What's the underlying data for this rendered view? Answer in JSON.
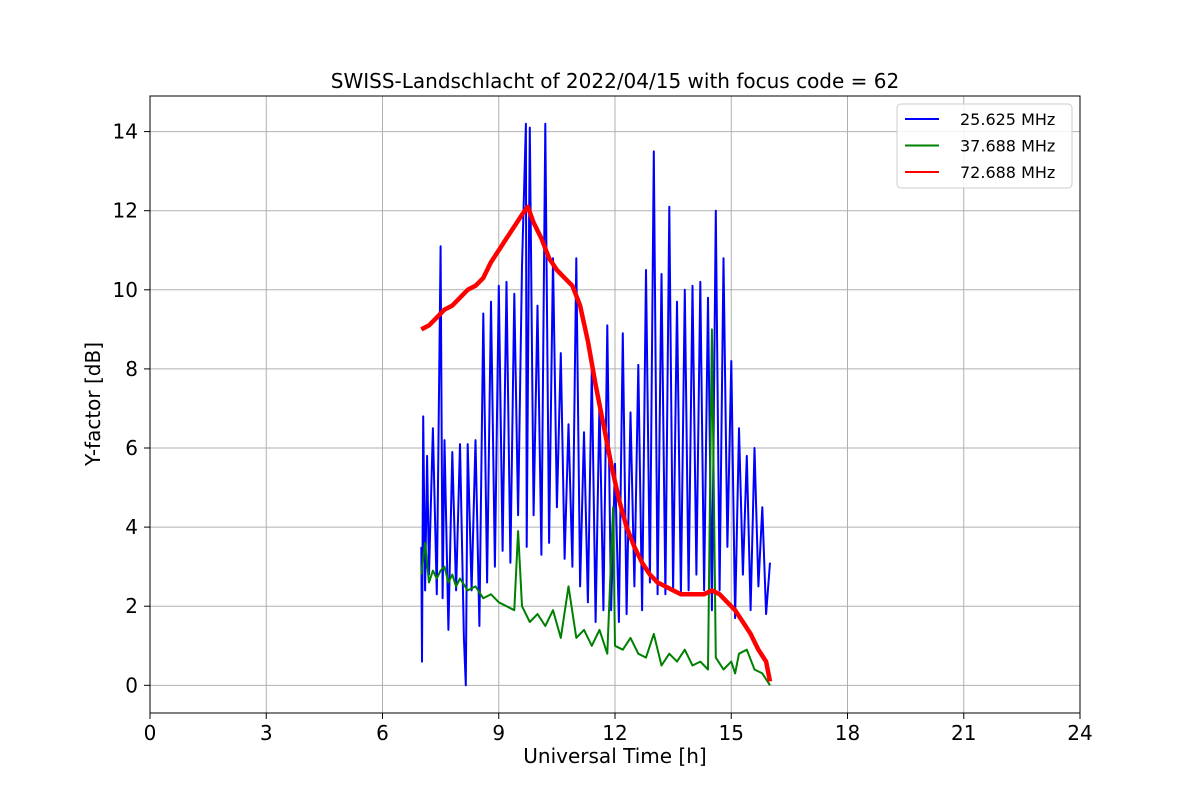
{
  "chart_data": {
    "type": "line",
    "title": "SWISS-Landschlacht of 2022/04/15 with focus code = 62",
    "xlabel": "Universal Time [h]",
    "ylabel": "Y-factor [dB]",
    "xlim": [
      0,
      24
    ],
    "ylim": [
      -0.7,
      14.9
    ],
    "xticks": [
      0,
      3,
      6,
      9,
      12,
      15,
      18,
      21,
      24
    ],
    "yticks": [
      0,
      2,
      4,
      6,
      8,
      10,
      12,
      14
    ],
    "grid": true,
    "legend_position": "top-right",
    "series": [
      {
        "name": "25.625 MHz",
        "color": "#0000ff",
        "x": [
          7.0,
          7.02,
          7.05,
          7.1,
          7.15,
          7.2,
          7.3,
          7.4,
          7.5,
          7.55,
          7.6,
          7.7,
          7.8,
          7.9,
          8.0,
          8.1,
          8.15,
          8.2,
          8.3,
          8.4,
          8.5,
          8.6,
          8.7,
          8.8,
          8.9,
          9.0,
          9.1,
          9.2,
          9.3,
          9.4,
          9.5,
          9.6,
          9.7,
          9.72,
          9.8,
          9.9,
          10.0,
          10.1,
          10.2,
          10.3,
          10.4,
          10.5,
          10.6,
          10.7,
          10.8,
          10.9,
          11.0,
          11.1,
          11.2,
          11.3,
          11.4,
          11.5,
          11.6,
          11.7,
          11.8,
          11.9,
          12.0,
          12.1,
          12.2,
          12.3,
          12.4,
          12.5,
          12.6,
          12.7,
          12.8,
          12.9,
          13.0,
          13.1,
          13.2,
          13.3,
          13.4,
          13.5,
          13.6,
          13.7,
          13.8,
          13.9,
          14.0,
          14.1,
          14.2,
          14.3,
          14.4,
          14.5,
          14.6,
          14.7,
          14.8,
          14.9,
          15.0,
          15.1,
          15.2,
          15.3,
          15.4,
          15.5,
          15.6,
          15.7,
          15.8,
          15.9,
          16.0
        ],
        "values": [
          3.5,
          0.6,
          6.8,
          2.4,
          5.8,
          2.8,
          6.5,
          2.3,
          11.1,
          2.2,
          6.2,
          1.4,
          5.9,
          2.4,
          6.1,
          1.2,
          0.0,
          6.1,
          2.4,
          6.2,
          1.5,
          9.4,
          2.6,
          9.7,
          3.0,
          10.1,
          3.4,
          10.2,
          3.1,
          9.9,
          4.3,
          10.6,
          14.2,
          3.5,
          14.1,
          4.3,
          9.6,
          3.3,
          14.2,
          3.6,
          10.8,
          4.5,
          8.4,
          3.2,
          6.6,
          3.0,
          10.8,
          2.5,
          6.4,
          2.1,
          8.0,
          1.6,
          7.2,
          1.9,
          9.1,
          1.9,
          5.6,
          1.6,
          8.9,
          1.8,
          6.9,
          2.5,
          8.1,
          1.9,
          10.5,
          2.6,
          13.5,
          2.3,
          10.4,
          2.3,
          12.1,
          2.4,
          9.7,
          2.3,
          10.0,
          2.4,
          10.1,
          2.8,
          10.2,
          2.4,
          9.8,
          1.9,
          12.0,
          2.4,
          10.8,
          3.5,
          8.2,
          1.7,
          6.5,
          2.8,
          5.8,
          1.9,
          6.0,
          2.5,
          4.5,
          1.8,
          3.1
        ]
      },
      {
        "name": "37.688 MHz",
        "color": "#008000",
        "x": [
          7.0,
          7.1,
          7.2,
          7.3,
          7.4,
          7.5,
          7.6,
          7.7,
          7.8,
          7.9,
          8.0,
          8.2,
          8.4,
          8.6,
          8.8,
          9.0,
          9.2,
          9.4,
          9.5,
          9.6,
          9.8,
          10.0,
          10.2,
          10.4,
          10.6,
          10.8,
          11.0,
          11.2,
          11.4,
          11.6,
          11.8,
          11.95,
          12.0,
          12.2,
          12.4,
          12.6,
          12.8,
          13.0,
          13.2,
          13.4,
          13.6,
          13.8,
          14.0,
          14.2,
          14.4,
          14.5,
          14.6,
          14.8,
          15.0,
          15.1,
          15.2,
          15.4,
          15.6,
          15.8,
          16.0
        ],
        "values": [
          2.8,
          3.6,
          2.6,
          2.9,
          2.7,
          2.9,
          3.0,
          2.6,
          2.8,
          2.5,
          2.7,
          2.4,
          2.5,
          2.2,
          2.3,
          2.1,
          2.0,
          1.9,
          3.9,
          2.0,
          1.6,
          1.8,
          1.5,
          1.9,
          1.2,
          2.5,
          1.2,
          1.4,
          1.0,
          1.4,
          0.8,
          4.5,
          1.0,
          0.9,
          1.2,
          0.8,
          0.7,
          1.3,
          0.5,
          0.8,
          0.6,
          0.9,
          0.5,
          0.6,
          0.4,
          9.0,
          0.7,
          0.4,
          0.6,
          0.3,
          0.8,
          0.9,
          0.4,
          0.3,
          0.0
        ]
      },
      {
        "name": "72.688 MHz",
        "color": "#ff0000",
        "x": [
          7.0,
          7.2,
          7.4,
          7.6,
          7.8,
          8.0,
          8.2,
          8.4,
          8.6,
          8.8,
          9.0,
          9.2,
          9.4,
          9.6,
          9.75,
          9.9,
          10.1,
          10.3,
          10.5,
          10.7,
          10.9,
          11.1,
          11.3,
          11.5,
          11.7,
          11.9,
          12.1,
          12.3,
          12.5,
          12.7,
          12.9,
          13.1,
          13.3,
          13.5,
          13.7,
          13.9,
          14.1,
          14.3,
          14.5,
          14.7,
          14.9,
          15.1,
          15.3,
          15.5,
          15.7,
          15.9,
          16.0
        ],
        "values": [
          9.0,
          9.1,
          9.3,
          9.5,
          9.6,
          9.8,
          10.0,
          10.1,
          10.3,
          10.7,
          11.0,
          11.3,
          11.6,
          11.9,
          12.1,
          11.7,
          11.3,
          10.8,
          10.5,
          10.3,
          10.1,
          9.6,
          8.7,
          7.6,
          6.6,
          5.6,
          4.7,
          4.0,
          3.5,
          3.1,
          2.8,
          2.6,
          2.5,
          2.4,
          2.3,
          2.3,
          2.3,
          2.3,
          2.4,
          2.3,
          2.1,
          1.9,
          1.6,
          1.3,
          0.9,
          0.6,
          0.1
        ]
      }
    ]
  }
}
